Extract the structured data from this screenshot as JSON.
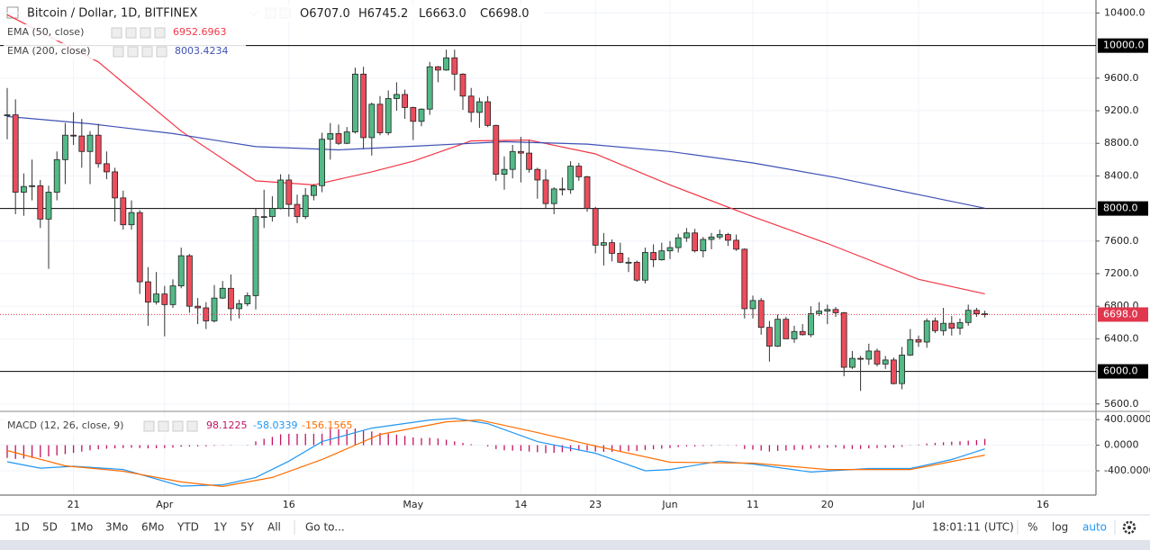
{
  "chart_data": {
    "type": "candlestick",
    "title": "Bitcoin / Dollar, 1D, BITFINEX",
    "ohlc_labels": [
      {
        "label": "O",
        "value": "6707.0"
      },
      {
        "label": "H",
        "value": "6745.2"
      },
      {
        "label": "L",
        "value": "6663.0"
      },
      {
        "label": "C",
        "value": "6698.0"
      }
    ],
    "x": [
      "03-13",
      "03-14",
      "03-15",
      "03-16",
      "03-17",
      "03-18",
      "03-19",
      "03-20",
      "03-21",
      "03-22",
      "03-23",
      "03-24",
      "03-25",
      "03-26",
      "03-27",
      "03-28",
      "03-29",
      "03-30",
      "03-31",
      "04-01",
      "04-02",
      "04-03",
      "04-04",
      "04-05",
      "04-06",
      "04-07",
      "04-08",
      "04-09",
      "04-10",
      "04-11",
      "04-12",
      "04-13",
      "04-14",
      "04-15",
      "04-16",
      "04-17",
      "04-18",
      "04-19",
      "04-20",
      "04-21",
      "04-22",
      "04-23",
      "04-24",
      "04-25",
      "04-26",
      "04-27",
      "04-28",
      "04-29",
      "04-30",
      "05-01",
      "05-02",
      "05-03",
      "05-04",
      "05-05",
      "05-06",
      "05-07",
      "05-08",
      "05-09",
      "05-10",
      "05-11",
      "05-12",
      "05-13",
      "05-14",
      "05-15",
      "05-16",
      "05-17",
      "05-18",
      "05-19",
      "05-20",
      "05-21",
      "05-22",
      "05-23",
      "05-24",
      "05-25",
      "05-26",
      "05-27",
      "05-28",
      "05-29",
      "05-30",
      "05-31",
      "06-01",
      "06-02",
      "06-03",
      "06-04",
      "06-05",
      "06-06",
      "06-07",
      "06-08",
      "06-09",
      "06-10",
      "06-11",
      "06-12",
      "06-13",
      "06-14",
      "06-15",
      "06-16",
      "06-17",
      "06-18",
      "06-19",
      "06-20",
      "06-21",
      "06-22",
      "06-23",
      "06-24",
      "06-25",
      "06-26",
      "06-27",
      "06-28",
      "06-29",
      "06-30",
      "07-01",
      "07-02",
      "07-03",
      "07-04",
      "07-05",
      "07-06",
      "07-07",
      "07-08",
      "07-09"
    ],
    "open": [
      9140,
      9150,
      8200,
      8270,
      8280,
      7870,
      8200,
      8600,
      8900,
      8890,
      8700,
      8900,
      8550,
      8450,
      8130,
      7800,
      7950,
      7100,
      6850,
      6950,
      6820,
      7050,
      7420,
      6800,
      6780,
      6620,
      6900,
      7020,
      6770,
      6830,
      6930,
      7900,
      7900,
      8000,
      8350,
      8050,
      7900,
      8160,
      8280,
      8850,
      8920,
      8800,
      8940,
      9650,
      8870,
      9280,
      8930,
      9350,
      9400,
      9240,
      9070,
      9220,
      9740,
      9700,
      9850,
      9650,
      9380,
      9180,
      9310,
      9020,
      8420,
      8480,
      8700,
      8680,
      8480,
      8350,
      8060,
      8240,
      8230,
      8520,
      8390,
      8000,
      7550,
      7580,
      7450,
      7340,
      7340,
      7120,
      7460,
      7370,
      7480,
      7520,
      7640,
      7700,
      7480,
      7620,
      7650,
      7680,
      7610,
      7500,
      6770,
      6870,
      6540,
      6310,
      6640,
      6400,
      6490,
      6450,
      6710,
      6740,
      6760,
      6720,
      6050,
      6160,
      6150,
      6250,
      6090,
      6140,
      5850,
      6200,
      6390,
      6360,
      6620,
      6500,
      6590,
      6530,
      6600,
      6750,
      6707
    ],
    "high": [
      9480,
      9340,
      8430,
      8600,
      8350,
      8280,
      8700,
      9050,
      9180,
      9100,
      8950,
      9040,
      8700,
      8500,
      8220,
      8100,
      7980,
      7280,
      7220,
      7050,
      7130,
      7520,
      7440,
      6900,
      6850,
      7060,
      7110,
      7190,
      6880,
      6970,
      8000,
      8230,
      8150,
      8420,
      8420,
      8170,
      8250,
      8300,
      8930,
      9050,
      9030,
      9000,
      9730,
      9740,
      9300,
      9380,
      9450,
      9550,
      9460,
      9250,
      9230,
      9800,
      9750,
      9950,
      9950,
      9660,
      9480,
      9360,
      9380,
      9030,
      8640,
      8780,
      8880,
      8840,
      8500,
      8480,
      8260,
      8380,
      8580,
      8560,
      8400,
      8020,
      7700,
      7620,
      7580,
      7400,
      7360,
      7520,
      7560,
      7580,
      7600,
      7690,
      7760,
      7750,
      7650,
      7700,
      7740,
      7700,
      7680,
      7510,
      6930,
      6900,
      6620,
      6700,
      6670,
      6560,
      6580,
      6800,
      6850,
      6820,
      6790,
      6730,
      6250,
      6190,
      6340,
      6280,
      6190,
      6170,
      6300,
      6520,
      6440,
      6650,
      6660,
      6780,
      6680,
      6650,
      6820,
      6780,
      6745.2
    ],
    "low": [
      8850,
      7930,
      7910,
      8100,
      7760,
      7260,
      8100,
      8300,
      8780,
      8500,
      8300,
      8500,
      8360,
      7840,
      7740,
      7740,
      6950,
      6560,
      6820,
      6430,
      6780,
      7020,
      6720,
      6580,
      6520,
      6600,
      6890,
      6620,
      6650,
      6800,
      6760,
      7760,
      7840,
      7990,
      7900,
      7820,
      7870,
      8100,
      8200,
      8600,
      8780,
      8790,
      8920,
      8730,
      8650,
      8900,
      8900,
      9200,
      9100,
      8840,
      9010,
      9150,
      9550,
      9690,
      9450,
      9210,
      9060,
      8990,
      9000,
      8340,
      8230,
      8370,
      8320,
      8440,
      8120,
      8000,
      7930,
      8160,
      8180,
      8340,
      7960,
      7450,
      7300,
      7350,
      7330,
      7220,
      7100,
      7080,
      7280,
      7360,
      7380,
      7460,
      7590,
      7460,
      7400,
      7500,
      7620,
      7540,
      7480,
      6650,
      6650,
      6450,
      6120,
      6300,
      6400,
      6350,
      6440,
      6420,
      6680,
      6580,
      6670,
      5940,
      6030,
      5760,
      6080,
      6060,
      6030,
      5840,
      5780,
      6190,
      6300,
      6290,
      6470,
      6440,
      6440,
      6450,
      6560,
      6670,
      6663
    ],
    "close": [
      9150,
      8200,
      8270,
      8280,
      7870,
      8200,
      8600,
      8900,
      8890,
      8700,
      8900,
      8550,
      8450,
      8130,
      7800,
      7950,
      7100,
      6850,
      6950,
      6820,
      7050,
      7420,
      6800,
      6780,
      6620,
      6900,
      7020,
      6770,
      6830,
      6930,
      7900,
      7900,
      8000,
      8350,
      8050,
      7900,
      8160,
      8280,
      8850,
      8920,
      8800,
      8940,
      9650,
      8870,
      9280,
      8930,
      9350,
      9400,
      9240,
      9070,
      9220,
      9740,
      9700,
      9850,
      9650,
      9380,
      9180,
      9310,
      9020,
      8420,
      8480,
      8700,
      8680,
      8480,
      8350,
      8060,
      8240,
      8230,
      8520,
      8390,
      8000,
      7550,
      7580,
      7450,
      7340,
      7340,
      7120,
      7460,
      7370,
      7480,
      7520,
      7640,
      7700,
      7480,
      7620,
      7650,
      7680,
      7610,
      7500,
      6770,
      6870,
      6540,
      6310,
      6640,
      6400,
      6490,
      6450,
      6710,
      6740,
      6760,
      6720,
      6050,
      6160,
      6150,
      6250,
      6090,
      6140,
      5850,
      6200,
      6390,
      6360,
      6620,
      6500,
      6590,
      6530,
      6600,
      6750,
      6707,
      6698
    ],
    "up_color": "#53b987",
    "down_color": "#eb4d5c",
    "ylim": [
      5520,
      10560
    ],
    "yticks": [
      {
        "value": 10400,
        "label": "10400.0"
      },
      {
        "value": 9600,
        "label": "9600.0"
      },
      {
        "value": 9200,
        "label": "9200.0"
      },
      {
        "value": 8800,
        "label": "8800.0"
      },
      {
        "value": 8400,
        "label": "8400.0"
      },
      {
        "value": 7600,
        "label": "7600.0"
      },
      {
        "value": 7200,
        "label": "7200.0"
      },
      {
        "value": 6800,
        "label": "6800.0"
      },
      {
        "value": 6400,
        "label": "6400.0"
      },
      {
        "value": 5600,
        "label": "5600.0"
      }
    ],
    "hlines": [
      {
        "value": 10000,
        "label": "10000.0"
      },
      {
        "value": 8000,
        "label": "8000.0"
      },
      {
        "value": 6000,
        "label": "6000.0"
      }
    ],
    "last_price": {
      "value": 6698,
      "label": "6698.0",
      "color": "#e0374f"
    },
    "overlays": [
      {
        "name": "EMA (50, close)",
        "color": "#f23645",
        "x": [
          "03-13",
          "03-24",
          "04-03",
          "04-12",
          "04-19",
          "04-26",
          "05-01",
          "05-08",
          "05-15",
          "05-23",
          "06-01",
          "06-11",
          "06-20",
          "07-01",
          "07-09"
        ],
        "values": [
          10380,
          9800,
          8950,
          8340,
          8290,
          8450,
          8580,
          8830,
          8840,
          8670,
          8290,
          7900,
          7570,
          7130,
          6952.6963
        ]
      },
      {
        "name": "EMA (200, close)",
        "color": "#3f51b5",
        "x": [
          "03-13",
          "03-23",
          "04-02",
          "04-12",
          "04-22",
          "05-02",
          "05-12",
          "05-22",
          "06-01",
          "06-11",
          "06-21",
          "07-01",
          "07-09"
        ],
        "values": [
          9130,
          9040,
          8920,
          8760,
          8720,
          8770,
          8820,
          8790,
          8700,
          8560,
          8380,
          8170,
          8003.4234
        ]
      }
    ],
    "xticks": [
      {
        "value": "03-21",
        "label": "21"
      },
      {
        "value": "04-01",
        "label": "Apr"
      },
      {
        "value": "04-16",
        "label": "16"
      },
      {
        "value": "05-01",
        "label": "May"
      },
      {
        "value": "05-14",
        "label": "14"
      },
      {
        "value": "05-23",
        "label": "23"
      },
      {
        "value": "06-01",
        "label": "Jun"
      },
      {
        "value": "06-11",
        "label": "11"
      },
      {
        "value": "06-20",
        "label": "20"
      },
      {
        "value": "07-01",
        "label": "Jul"
      },
      {
        "value": "07-16",
        "label": "16"
      }
    ],
    "macd": {
      "name": "MACD (12, 26, close, 9)",
      "ylim": [
        -780,
        500
      ],
      "yticks": [
        {
          "value": 400,
          "label": "400.0000"
        },
        {
          "value": 0,
          "label": "0.0000"
        },
        {
          "value": -400,
          "label": "-400.0000"
        }
      ],
      "histogram": {
        "color": "#c51162",
        "values": [
          -200,
          -215,
          -210,
          -200,
          -190,
          -175,
          -160,
          -140,
          -120,
          -100,
          -80,
          -65,
          -55,
          -50,
          -45,
          -40,
          -45,
          -50,
          -48,
          -45,
          -38,
          -25,
          -22,
          -20,
          -18,
          -10,
          -5,
          -5,
          0,
          5,
          60,
          100,
          130,
          170,
          185,
          190,
          200,
          210,
          240,
          255,
          250,
          245,
          260,
          230,
          215,
          190,
          180,
          165,
          145,
          120,
          110,
          115,
          105,
          85,
          60,
          35,
          15,
          0,
          -20,
          -60,
          -80,
          -85,
          -90,
          -100,
          -110,
          -125,
          -120,
          -110,
          -95,
          -85,
          -85,
          -100,
          -105,
          -105,
          -100,
          -95,
          -90,
          -75,
          -65,
          -55,
          -45,
          -30,
          -20,
          -20,
          -15,
          -10,
          -5,
          -5,
          -10,
          -60,
          -70,
          -85,
          -100,
          -90,
          -85,
          -75,
          -70,
          -55,
          -45,
          -40,
          -35,
          -55,
          -60,
          -60,
          -50,
          -45,
          -40,
          -40,
          -25,
          -5,
          10,
          25,
          35,
          45,
          55,
          60,
          70,
          80,
          98.1225
        ]
      },
      "lines": [
        {
          "color": "#2196f3",
          "x": [
            "03-13",
            "03-17",
            "03-21",
            "03-27",
            "04-03",
            "04-08",
            "04-12",
            "04-16",
            "04-20",
            "04-26",
            "05-03",
            "05-06",
            "05-10",
            "05-16",
            "05-23",
            "05-29",
            "06-01",
            "06-07",
            "06-11",
            "06-18",
            "06-25",
            "06-30",
            "07-05",
            "07-09"
          ],
          "values": [
            -260,
            -360,
            -330,
            -380,
            -640,
            -620,
            -505,
            -250,
            56,
            267,
            393,
            420,
            337,
            56,
            -126,
            -400,
            -380,
            -250,
            -295,
            -420,
            -365,
            -365,
            -225,
            -58.0339
          ]
        },
        {
          "color": "#ff6d00",
          "x": [
            "03-13",
            "03-20",
            "03-27",
            "04-03",
            "04-08",
            "04-14",
            "04-20",
            "04-27",
            "05-05",
            "05-09",
            "05-16",
            "05-23",
            "06-01",
            "06-11",
            "06-20",
            "06-30",
            "07-09"
          ],
          "values": [
            -84,
            -323,
            -407,
            -575,
            -645,
            -505,
            -225,
            168,
            365,
            393,
            196,
            -14,
            -267,
            -280,
            -380,
            -380,
            -156.1565
          ]
        }
      ]
    },
    "toolbar": {
      "ranges": [
        "1D",
        "5D",
        "1Mo",
        "3Mo",
        "6Mo",
        "YTD",
        "1Y",
        "5Y",
        "All"
      ],
      "goto": "Go to...",
      "time": "18:01:11 (UTC)",
      "options": [
        "%",
        "log",
        "auto"
      ]
    }
  }
}
